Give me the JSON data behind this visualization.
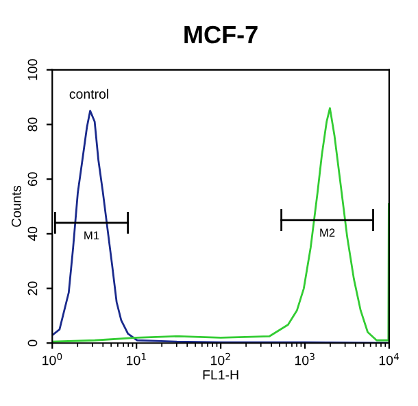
{
  "chart_data": {
    "type": "line",
    "title": "MCF-7",
    "xlabel": "FL1-H",
    "ylabel": "Counts",
    "log": "x",
    "xlim": [
      1,
      10000
    ],
    "xticks": [
      {
        "value": 1,
        "label": "10$^{0}$"
      },
      {
        "value": 10,
        "label": "10$^{1}$"
      },
      {
        "value": 100,
        "label": "10$^{2}$"
      },
      {
        "value": 1000,
        "label": "10$^{3}$"
      },
      {
        "value": 10000,
        "label": "10$^{4}$"
      }
    ],
    "ylim": [
      0,
      100
    ],
    "yticks": [
      0,
      20,
      40,
      60,
      80,
      100
    ],
    "grid": false,
    "legend": false,
    "series": [
      {
        "name": "control",
        "color": "#1a2a8c",
        "x": [
          1.01,
          1.22,
          1.57,
          1.77,
          2.01,
          2.28,
          2.58,
          2.82,
          3.19,
          3.53,
          4.0,
          4.52,
          5.14,
          5.81,
          6.58,
          7.93,
          10.2,
          30,
          100,
          1000,
          9900
        ],
        "values": [
          3,
          5,
          18.5,
          35,
          55,
          67,
          79,
          85,
          81,
          67,
          55,
          42,
          28.5,
          15,
          8.4,
          3.4,
          1,
          0.5,
          0.3,
          0.3,
          0
        ]
      },
      {
        "color": "#33cc33",
        "x": [
          1,
          3.2,
          10,
          32,
          100,
          380,
          630,
          805,
          970,
          1170,
          1410,
          1590,
          1810,
          1980,
          2240,
          2630,
          3170,
          3810,
          4580,
          5560,
          7100,
          9800,
          9900,
          10000
        ],
        "values": [
          0.5,
          1,
          2,
          2.5,
          2,
          2.5,
          6.7,
          12,
          20,
          35,
          55,
          69,
          81,
          86,
          76,
          59,
          39,
          23.5,
          12,
          4,
          1,
          1,
          51,
          0
        ]
      },
      {
        "name": "M1",
        "color": "#000000",
        "x": [
          1.08,
          7.9
        ],
        "values": [
          44,
          44
        ],
        "errors": [
          4,
          4
        ]
      },
      {
        "name": "M2",
        "color": "#000000",
        "x": [
          525,
          6450
        ],
        "values": [
          45,
          45
        ],
        "errors": [
          4,
          4
        ]
      }
    ]
  }
}
